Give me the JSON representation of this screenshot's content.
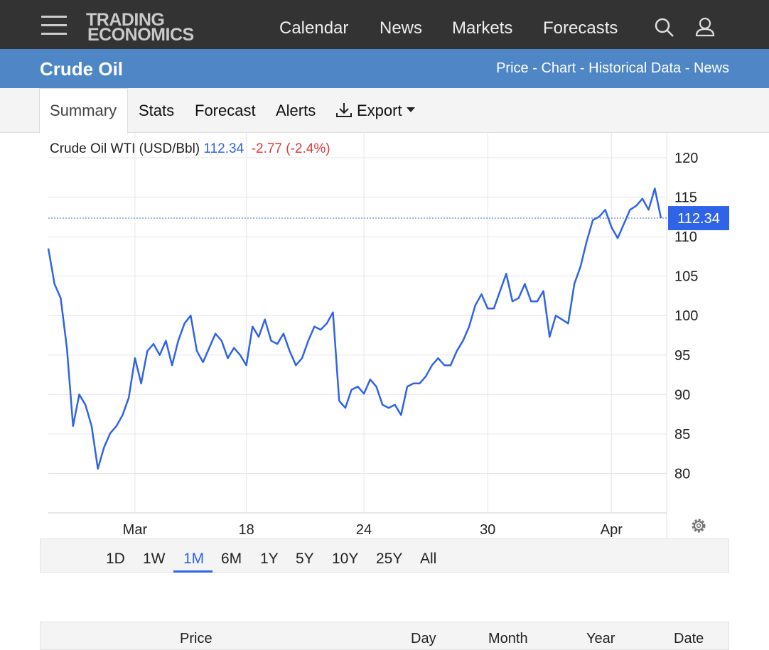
{
  "nav": {
    "logo": [
      "TRADING",
      "ECONOMICS"
    ],
    "menu": [
      "Calendar",
      "News",
      "Markets",
      "Forecasts"
    ]
  },
  "header": {
    "title": "Crude Oil",
    "links": [
      "Price",
      "Chart",
      "Historical Data",
      "News"
    ],
    "separator": "-"
  },
  "tabs": [
    "Summary",
    "Stats",
    "Forecast",
    "Alerts",
    "Export"
  ],
  "chart_data": {
    "type": "line",
    "title": "Crude Oil WTI (USD/Bbl)",
    "price": 112.34,
    "change": -2.77,
    "change_pct": {
      "value": -2.4,
      "label": "(-2.4%)"
    },
    "categories": [
      null,
      null,
      null,
      null,
      null,
      null,
      null,
      null,
      null,
      null,
      null,
      null,
      null,
      null,
      "Mar",
      null,
      null,
      null,
      null,
      null,
      null,
      null,
      null,
      null,
      null,
      null,
      null,
      null,
      null,
      null,
      null,
      null,
      "18",
      null,
      null,
      null,
      null,
      null,
      null,
      null,
      null,
      null,
      null,
      null,
      null,
      null,
      null,
      null,
      null,
      null,
      null,
      "24",
      null,
      null,
      null,
      null,
      null,
      null,
      null,
      null,
      null,
      null,
      null,
      null,
      null,
      null,
      null,
      null,
      null,
      null,
      null,
      "30",
      null,
      null,
      null,
      null,
      null,
      null,
      null,
      null,
      null,
      null,
      null,
      null,
      null,
      null,
      null,
      null,
      null,
      null,
      null,
      "Apr",
      null,
      null,
      null,
      null,
      null,
      null,
      null,
      null
    ],
    "values": [
      108.5,
      104,
      102.2,
      95.9,
      86,
      90,
      88.7,
      86,
      80.6,
      83.3,
      85.1,
      86,
      87.4,
      89.6,
      94.6,
      91.4,
      95.5,
      96.4,
      95,
      96.8,
      93.7,
      96.8,
      99,
      100,
      95.5,
      94.1,
      95.9,
      97.7,
      96.8,
      94.6,
      95.9,
      95,
      93.7,
      98.6,
      97.3,
      99.5,
      96.8,
      96.4,
      97.7,
      95.5,
      93.7,
      94.6,
      96.8,
      98.6,
      98.2,
      99,
      100.4,
      89.2,
      88.3,
      90.6,
      91,
      90.1,
      91.9,
      91,
      88.7,
      88.3,
      88.7,
      87.4,
      91,
      91.4,
      91.4,
      92.3,
      93.7,
      94.6,
      93.7,
      93.7,
      95.5,
      96.8,
      98.6,
      101.3,
      102.7,
      100.9,
      100.9,
      103.1,
      105.3,
      101.8,
      102.2,
      104,
      101.8,
      101.8,
      103.1,
      97.3,
      100,
      99.5,
      99,
      104,
      106.2,
      109.4,
      112.1,
      112.5,
      113.4,
      111.2,
      109.8,
      111.6,
      113.4,
      113.9,
      114.8,
      113.4,
      116.1,
      112.34
    ],
    "color": "#2f63e8",
    "ylim": [
      75,
      123
    ],
    "yticks": [
      80,
      85,
      90,
      95,
      100,
      105,
      110,
      115,
      120
    ],
    "grid": true
  },
  "ranges": [
    "1D",
    "1W",
    "1M",
    "6M",
    "1Y",
    "5Y",
    "10Y",
    "25Y",
    "All"
  ],
  "table": {
    "columns": [
      "Price",
      "Day",
      "Month",
      "Year",
      "Date"
    ]
  }
}
